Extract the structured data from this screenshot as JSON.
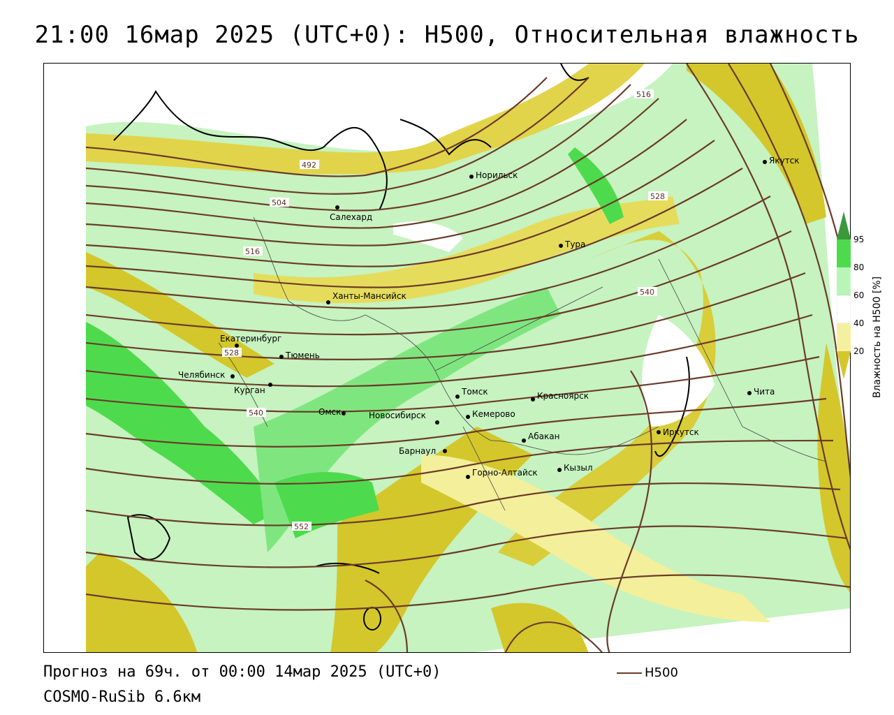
{
  "title": "21:00 16мар 2025 (UTC+0): H500, Относительная влажность",
  "footer": {
    "forecast": "Прогноз на 69ч. от 00:00 14мар 2025 (UTC+0)",
    "model": "COSMO-RuSib 6.6км",
    "legend_h500": "H500"
  },
  "scale": {
    "title": "Влажность на H500 [%]",
    "ticks": [
      "95",
      "80",
      "60",
      "40",
      "20"
    ],
    "colors": {
      "c95": "#3a9a3a",
      "c80": "#4ddb4d",
      "c60": "#b9f5b9",
      "c40": "#ffffff",
      "c20": "#f5f0a0",
      "c0": "#d4c72b"
    }
  },
  "isolines": [
    "492",
    "504",
    "516",
    "528",
    "540",
    "552",
    "516",
    "528",
    "540"
  ],
  "cities": [
    {
      "name": "Норильск"
    },
    {
      "name": "Якутск"
    },
    {
      "name": "Салехард"
    },
    {
      "name": "Тура"
    },
    {
      "name": "Ханты-Мансийск"
    },
    {
      "name": "Екатеринбург"
    },
    {
      "name": "Тюмень"
    },
    {
      "name": "Челябинск"
    },
    {
      "name": "Курган"
    },
    {
      "name": "Омск"
    },
    {
      "name": "Новосибирск"
    },
    {
      "name": "Томск"
    },
    {
      "name": "Кемерово"
    },
    {
      "name": "Красноярск"
    },
    {
      "name": "Барнаул"
    },
    {
      "name": "Абакан"
    },
    {
      "name": "Иркутск"
    },
    {
      "name": "Чита"
    },
    {
      "name": "Горно-Алтайск"
    },
    {
      "name": "Кызыл"
    }
  ]
}
